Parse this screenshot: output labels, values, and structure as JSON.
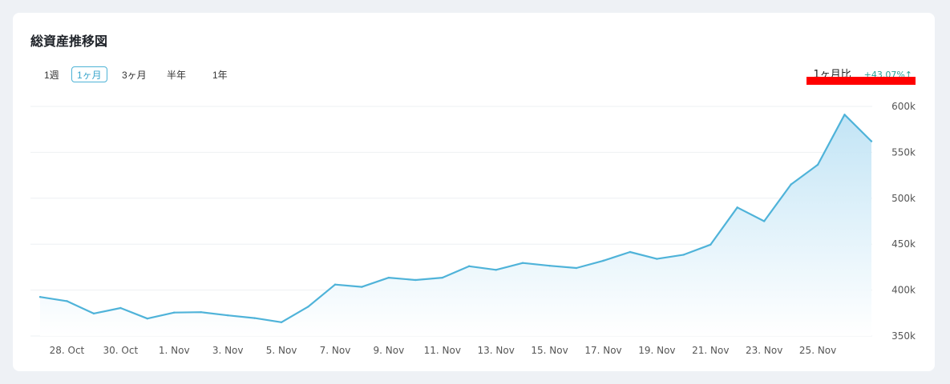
{
  "card": {
    "title": "総資産推移図",
    "ranges": [
      "1週",
      "1ヶ月",
      "3ヶ月",
      "半年",
      "1年"
    ],
    "active_range": "1ヶ月",
    "compare_label": "1ヶ月比",
    "compare_value": "+43.07%↑"
  },
  "colors": {
    "line": "#4fb3d9",
    "area_top": "#bfe3f5",
    "area_bottom": "#ffffff",
    "accent": "#4db3d6",
    "positive": "#2aa198",
    "redaction": "#ff0000"
  },
  "chart_data": {
    "type": "area",
    "xlabel": "",
    "ylabel": "",
    "x_tick_labels": [
      "28. Oct",
      "30. Oct",
      "1. Nov",
      "3. Nov",
      "5. Nov",
      "7. Nov",
      "9. Nov",
      "11. Nov",
      "13. Nov",
      "15. Nov",
      "17. Nov",
      "19. Nov",
      "21. Nov",
      "23. Nov",
      "25. Nov"
    ],
    "y_tick_labels": [
      "350k",
      "400k",
      "450k",
      "500k",
      "550k",
      "600k"
    ],
    "y_ticks": [
      350000,
      400000,
      450000,
      500000,
      550000,
      600000
    ],
    "ylim": [
      350000,
      600000
    ],
    "y_axis_position": "right",
    "grid": true,
    "x": [
      "27. Oct",
      "28. Oct",
      "29. Oct",
      "30. Oct",
      "31. Oct",
      "1. Nov",
      "2. Nov",
      "3. Nov",
      "4. Nov",
      "5. Nov",
      "6. Nov",
      "7. Nov",
      "8. Nov",
      "9. Nov",
      "10. Nov",
      "11. Nov",
      "12. Nov",
      "13. Nov",
      "14. Nov",
      "15. Nov",
      "16. Nov",
      "17. Nov",
      "18. Nov",
      "19. Nov",
      "20. Nov",
      "21. Nov",
      "22. Nov",
      "23. Nov",
      "24. Nov",
      "25. Nov",
      "26. Nov",
      "27. Nov"
    ],
    "values": [
      392500,
      388000,
      374500,
      380500,
      369000,
      375500,
      376000,
      372500,
      369500,
      365000,
      382000,
      406000,
      403500,
      413500,
      411000,
      413500,
      426000,
      422000,
      429500,
      426500,
      424000,
      432000,
      441500,
      434000,
      438500,
      449500,
      490000,
      475000,
      515000,
      536500,
      591000,
      562000
    ]
  }
}
